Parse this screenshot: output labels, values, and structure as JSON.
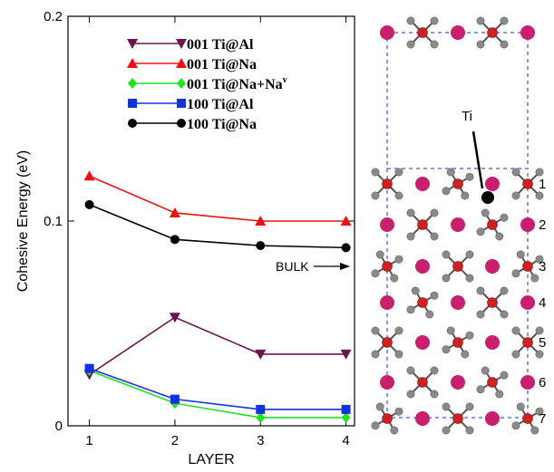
{
  "chart_data": {
    "type": "line",
    "xlabel": "LAYER",
    "ylabel": "Cohesive Energy (eV)",
    "x": [
      1,
      2,
      3,
      4
    ],
    "xticks": [
      "1",
      "2",
      "3",
      "4"
    ],
    "yticks": [
      "0",
      "0.1",
      "0.2"
    ],
    "xlim": [
      0.75,
      4.1
    ],
    "ylim": [
      0,
      0.2
    ],
    "grid": false,
    "legend_position": "top-center",
    "series": [
      {
        "name": "001 Ti@Al",
        "name_superscript": "",
        "marker": "triangle-down",
        "color": "#6b1650",
        "values": [
          0.025,
          0.053,
          0.035,
          0.035
        ]
      },
      {
        "name": "001 Ti@Na",
        "name_superscript": "",
        "marker": "triangle-up",
        "color": "#ee1111",
        "values": [
          0.122,
          0.104,
          0.1,
          0.1
        ]
      },
      {
        "name": "001 Ti@Na+Na",
        "name_superscript": "v",
        "marker": "diamond",
        "color": "#22e022",
        "values": [
          0.027,
          0.011,
          0.004,
          0.004
        ]
      },
      {
        "name": "100 Ti@Al",
        "name_superscript": "",
        "marker": "square",
        "color": "#1133dd",
        "values": [
          0.028,
          0.013,
          0.008,
          0.008
        ]
      },
      {
        "name": "100 Ti@Na",
        "name_superscript": "",
        "marker": "circle",
        "color": "#000000",
        "values": [
          0.108,
          0.091,
          0.088,
          0.087
        ]
      }
    ],
    "annotations": [
      {
        "text": "BULK",
        "arrow": "right"
      }
    ]
  },
  "structure": {
    "atom_label": "Ti",
    "layer_labels": [
      "1",
      "2",
      "3",
      "4",
      "5",
      "6",
      "7"
    ],
    "colors": {
      "sodium": "#c8206e",
      "center": "#cc2222",
      "ligand": "#8a8a8a",
      "cell": "#8899dd"
    }
  }
}
